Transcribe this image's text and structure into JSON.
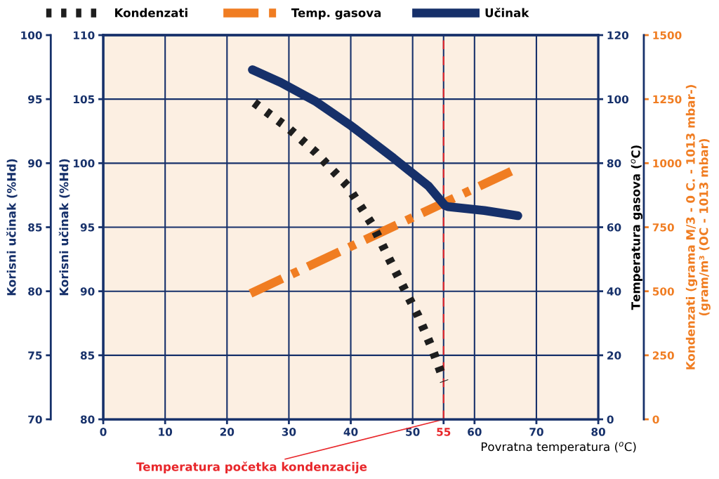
{
  "chart_data": [
    {
      "type": "line",
      "xlabel": "Povratna temperatura ($^{o}$C)",
      "ylabel": "Korisni učinak (%Hd)",
      "y2label": "Temperatura gasova ($^{o}$C)",
      "y3label": "Kondenzati (grama M/3 - 0 C. - 1013 mbar-)\n(gram/m³ (OC - 1013 mbar)",
      "xlim": [
        0,
        80
      ],
      "xticks": [
        0,
        10,
        20,
        30,
        40,
        50,
        55,
        60,
        70,
        80
      ],
      "ylim": [
        80,
        110
      ],
      "yticks": [
        80,
        85,
        90,
        95,
        100,
        105,
        110
      ],
      "y2lim": [
        0,
        120
      ],
      "y2ticks": [
        0,
        20,
        40,
        60,
        80,
        100,
        120
      ],
      "y3lim": [
        0,
        1500
      ],
      "y3ticks": [
        0,
        250,
        500,
        750,
        1000,
        1250,
        1500
      ],
      "grid": true,
      "legend": "top",
      "series": [
        {
          "name": "Kondenzati",
          "color": "#1e1e1e",
          "axis": "y3",
          "line_style": "dotted",
          "x": [
            24.4,
            29.9,
            34.4,
            39.5,
            43.5,
            46.3,
            48.6,
            50.9,
            53.1,
            55.1
          ],
          "values": [
            1236,
            1137,
            1041,
            910,
            759,
            622,
            512,
            403,
            279,
            148
          ]
        },
        {
          "name": "Temp. gasova",
          "color": "#f07d22",
          "axis": "y2",
          "line_style": "dashdot",
          "x": [
            23.8,
            66.4
          ],
          "values": [
            39.3,
            77.9
          ]
        }
      ],
      "ref_lines": [
        {
          "axis": "x",
          "value": 55,
          "color": "#e8262a",
          "line_style": "dashed"
        }
      ],
      "annotations": [
        {
          "text": "Temperatura početka kondenzacije",
          "x": 55,
          "y": 80
        }
      ]
    },
    {
      "type": "line",
      "ylabel": "Korisni učinak (%Hd)",
      "xlim": [
        0,
        80
      ],
      "ylim": [
        70,
        100
      ],
      "yticks": [
        70,
        75,
        80,
        85,
        90,
        95,
        100
      ],
      "tick_labels": "y",
      "series": [
        {
          "name": "Učinak",
          "color": "#16306a",
          "line_style": "solid",
          "x": [
            24.1,
            28.7,
            34.4,
            40.1,
            46.9,
            52.6,
            55.2,
            55.7,
            61.6,
            67.0
          ],
          "values": [
            97.3,
            96.3,
            94.8,
            92.9,
            90.4,
            88.2,
            86.7,
            86.6,
            86.3,
            85.9
          ]
        }
      ]
    }
  ]
}
